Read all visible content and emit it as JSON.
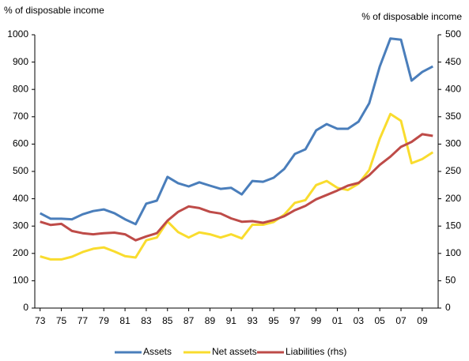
{
  "chart_data": {
    "type": "line",
    "y_label": "% of disposable income",
    "y2_label": "% of disposable income",
    "categories": [
      "73",
      null,
      "75",
      null,
      "77",
      null,
      "79",
      null,
      "81",
      null,
      "83",
      null,
      "85",
      null,
      "87",
      null,
      "89",
      null,
      "91",
      null,
      "93",
      null,
      "95",
      null,
      "97",
      null,
      "99",
      null,
      "01",
      null,
      "03",
      null,
      "05",
      null,
      "07",
      null,
      "09",
      null
    ],
    "series": [
      {
        "name": "Assets",
        "color": "#4a7ebb",
        "axis": "y",
        "values": [
          347,
          327,
          327,
          325,
          343,
          355,
          361,
          347,
          325,
          307,
          382,
          393,
          480,
          457,
          445,
          460,
          448,
          436,
          440,
          416,
          465,
          462,
          477,
          509,
          564,
          581,
          650,
          673,
          656,
          656,
          682,
          749,
          884,
          986,
          982,
          832,
          864,
          884
        ]
      },
      {
        "name": "Net assets",
        "color": "#f9dc2e",
        "axis": "y",
        "values": [
          189,
          178,
          178,
          188,
          205,
          217,
          222,
          207,
          190,
          185,
          248,
          258,
          317,
          278,
          258,
          277,
          270,
          258,
          270,
          255,
          305,
          305,
          315,
          342,
          385,
          395,
          450,
          465,
          440,
          432,
          455,
          505,
          620,
          710,
          685,
          530,
          545,
          570
        ]
      },
      {
        "name": "Liabilities (rhs)",
        "color": "#be4b48",
        "axis": "y2",
        "values": [
          158,
          152,
          154,
          141,
          137,
          135,
          137,
          138,
          135,
          124,
          131,
          137,
          160,
          176,
          186,
          183,
          176,
          173,
          164,
          158,
          159,
          156,
          161,
          168,
          179,
          187,
          199,
          207,
          215,
          224,
          229,
          243,
          262,
          277,
          295,
          304,
          318,
          315
        ]
      }
    ],
    "ylim": [
      0,
      1000
    ],
    "yticks": [
      0,
      100,
      200,
      300,
      400,
      500,
      600,
      700,
      800,
      900,
      1000
    ],
    "y2lim": [
      0,
      500
    ],
    "y2ticks": [
      0,
      50,
      100,
      150,
      200,
      250,
      300,
      350,
      400,
      450,
      500
    ],
    "grid": false,
    "legend": "bottom"
  }
}
